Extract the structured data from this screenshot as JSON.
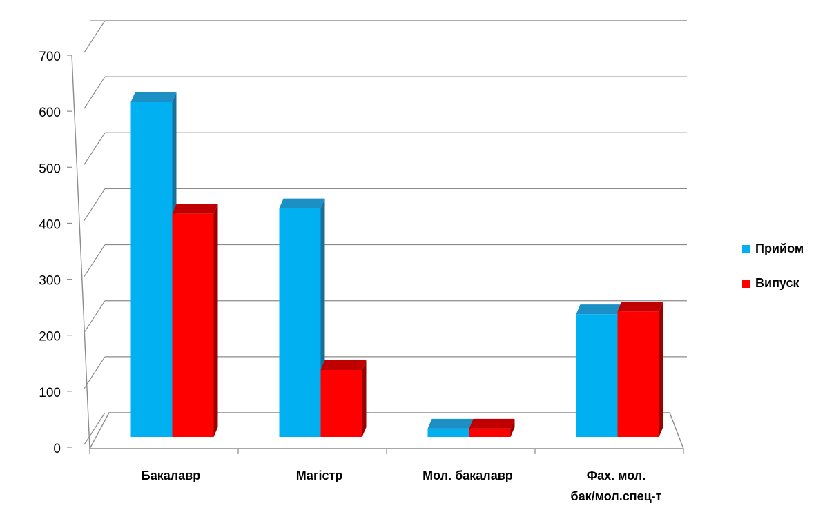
{
  "chart_data": {
    "type": "bar",
    "title": "",
    "xlabel": "",
    "ylabel": "",
    "ylim": [
      0,
      700
    ],
    "yticks": [
      "0",
      "100",
      "200",
      "300",
      "400",
      "500",
      "600",
      "700"
    ],
    "categories": [
      [
        "Бакалавр"
      ],
      [
        "Магістр"
      ],
      [
        "Мол. бакалавр"
      ],
      [
        "Фах. мол.",
        "бак/мол.спец-т"
      ]
    ],
    "series": [
      {
        "name": "Прийом",
        "values": [
          600,
          410,
          15,
          220
        ],
        "color": "#00b0f0",
        "top": "#1c90c4",
        "side": "#1a6f99"
      },
      {
        "name": "Випуск",
        "values": [
          400,
          120,
          15,
          225
        ],
        "color": "#ff0000",
        "top": "#c00000",
        "side": "#990000"
      }
    ],
    "grid": true,
    "legend_position": "right",
    "style": "3d-clustered-column"
  }
}
